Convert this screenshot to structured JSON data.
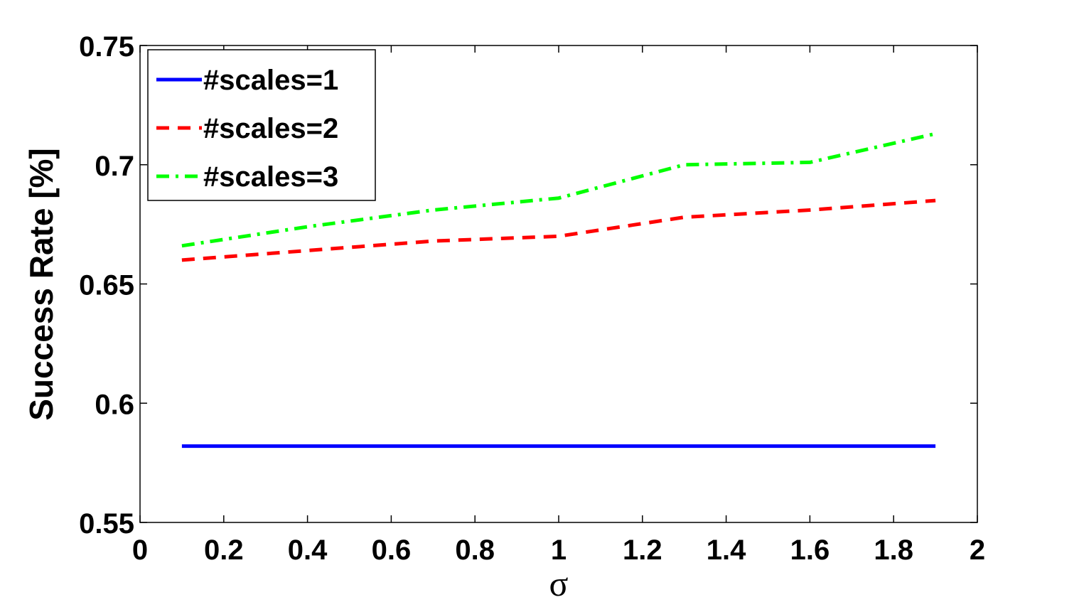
{
  "chart_data": {
    "type": "line",
    "title": "",
    "xlabel": "σ",
    "ylabel": "Success Rate [%]",
    "xlim": [
      0,
      2
    ],
    "ylim": [
      0.55,
      0.75
    ],
    "xticks": [
      0,
      0.2,
      0.4,
      0.6,
      0.8,
      1,
      1.2,
      1.4,
      1.6,
      1.8,
      2
    ],
    "xtick_labels": [
      "0",
      "0.2",
      "0.4",
      "0.6",
      "0.8",
      "1",
      "1.2",
      "1.4",
      "1.6",
      "1.8",
      "2"
    ],
    "yticks": [
      0.55,
      0.6,
      0.65,
      0.7,
      0.75
    ],
    "ytick_labels": [
      "0.55",
      "0.6",
      "0.65",
      "0.7",
      "0.75"
    ],
    "grid": false,
    "legend_position": "top-left",
    "x": [
      0.1,
      0.4,
      0.7,
      1.0,
      1.3,
      1.6,
      1.9
    ],
    "series": [
      {
        "name": "#scales=1",
        "color": "#0000ff",
        "style": "solid",
        "values": [
          0.582,
          0.582,
          0.582,
          0.582,
          0.582,
          0.582,
          0.582
        ]
      },
      {
        "name": "#scales=2",
        "color": "#ff0000",
        "style": "dashed",
        "values": [
          0.66,
          0.664,
          0.668,
          0.67,
          0.678,
          0.681,
          0.685
        ]
      },
      {
        "name": "#scales=3",
        "color": "#00ff00",
        "style": "dashdot",
        "values": [
          0.666,
          0.674,
          0.681,
          0.686,
          0.7,
          0.701,
          0.713
        ]
      }
    ]
  }
}
